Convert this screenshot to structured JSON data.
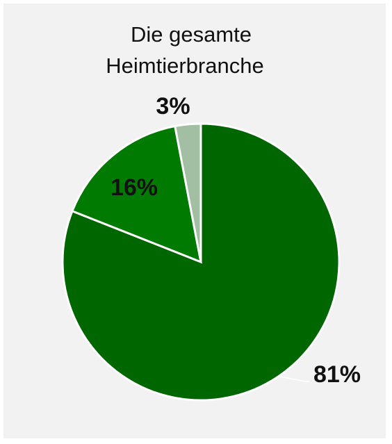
{
  "chart_data": {
    "type": "pie",
    "title": [
      "Die gesamte",
      "Heimtierbranche"
    ],
    "values": [
      81,
      16,
      3
    ],
    "value_labels": [
      "81%",
      "16%",
      "3%"
    ],
    "colors": [
      "#006600",
      "#007a00",
      "#a3bfa3"
    ]
  }
}
